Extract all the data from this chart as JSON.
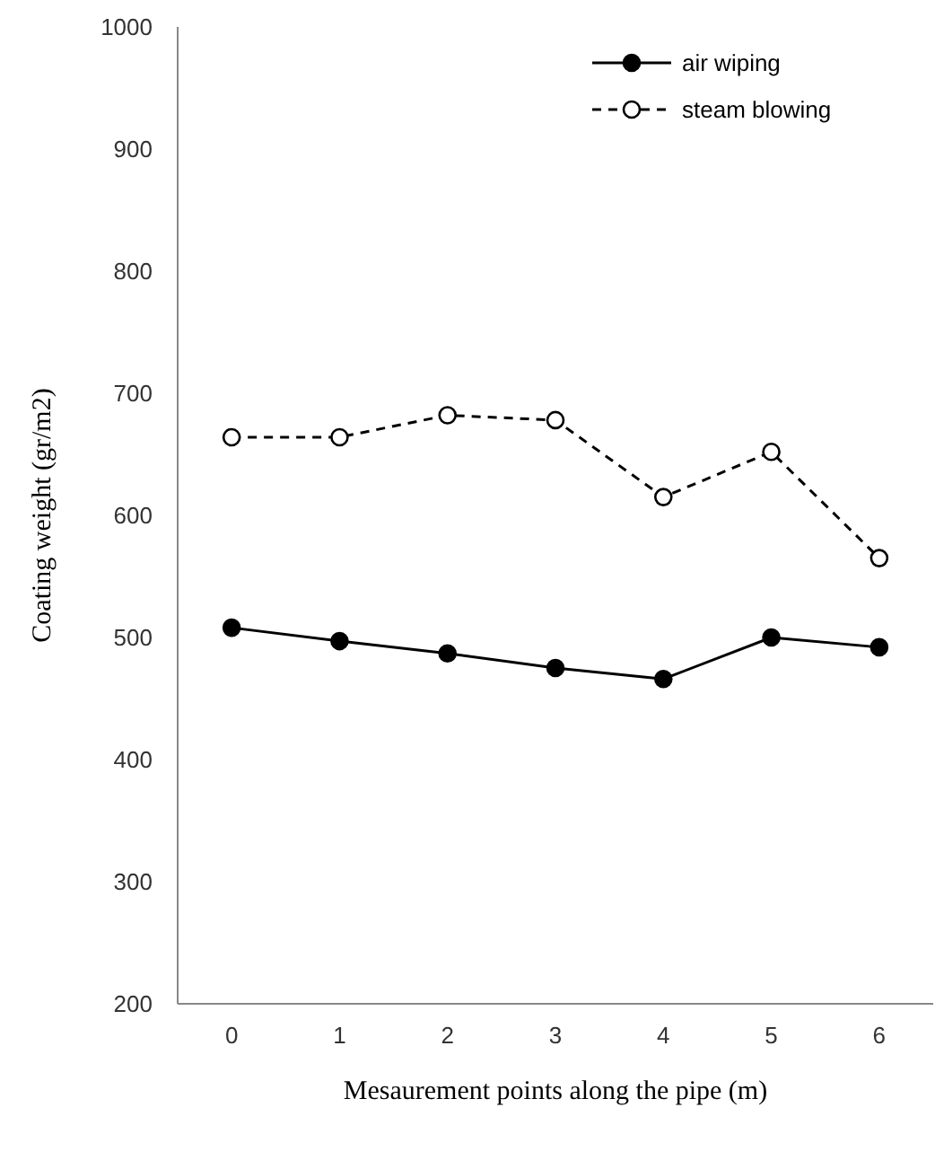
{
  "chart_data": {
    "type": "line",
    "xlabel": "Mesaurement points along the pipe (m)",
    "ylabel": "Coating weight  (gr/m2)",
    "x": [
      0,
      1,
      2,
      3,
      4,
      5,
      6
    ],
    "xlim": [
      -0.5,
      6.5
    ],
    "xticks": [
      0,
      1,
      2,
      3,
      4,
      5,
      6
    ],
    "ylim": [
      200,
      1000
    ],
    "yticks": [
      200,
      300,
      400,
      500,
      600,
      700,
      800,
      900,
      1000
    ],
    "series": [
      {
        "name": "air wiping",
        "color": "#000000",
        "values": [
          508,
          497,
          487,
          475,
          466,
          500,
          492
        ],
        "marker": "circle",
        "line_style": "solid"
      },
      {
        "name": "steam blowing",
        "color": "#000000",
        "values": [
          664,
          664,
          682,
          678,
          615,
          652,
          565
        ],
        "marker": "circle",
        "line_style": "dashed"
      }
    ],
    "grid": false,
    "legend": "top right"
  }
}
